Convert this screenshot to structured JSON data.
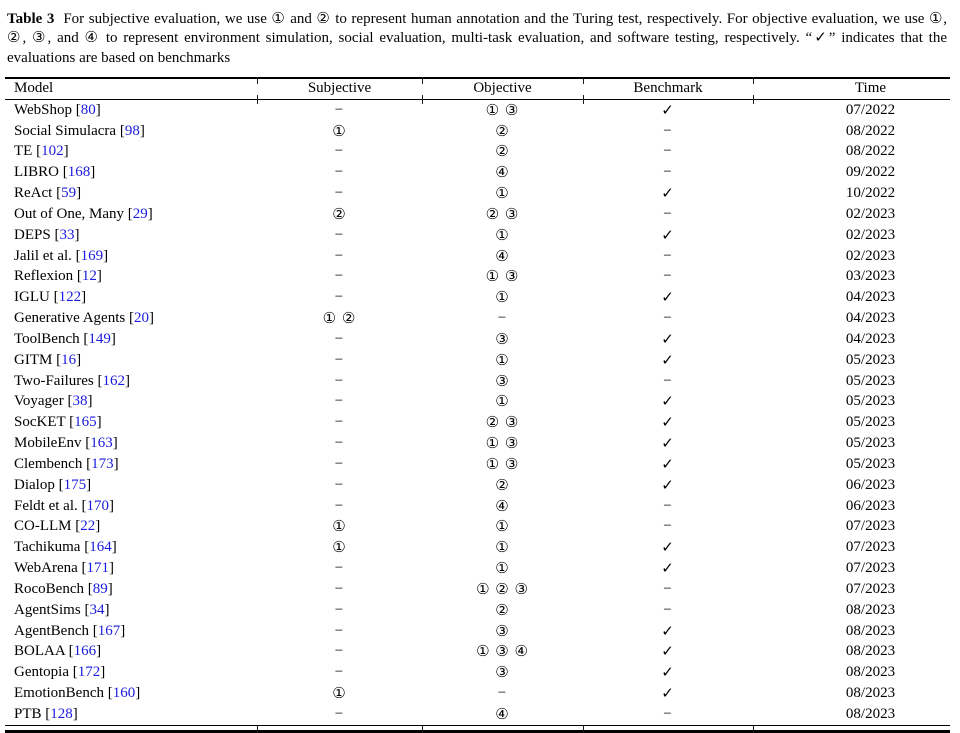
{
  "colors": {
    "link_blue": "#1a1ae0"
  },
  "caption": {
    "label": "Table 3",
    "text": "For subjective evaluation, we use ① and ② to represent human annotation and the Turing test, respectively. For objective evaluation, we use ①, ②, ③, and ④ to represent environment simulation, social evaluation, multi-task evaluation, and software testing, respectively. “✓” indicates that the evaluations are based on benchmarks"
  },
  "table": {
    "columns": [
      "Model",
      "Subjective",
      "Objective",
      "Benchmark",
      "Time"
    ],
    "ref_brackets": [
      "[",
      "]"
    ],
    "rows": [
      {
        "model": "WebShop",
        "ref": "80",
        "subjective": "−",
        "objective": "① ③",
        "benchmark": "✓",
        "time": "07/2022"
      },
      {
        "model": "Social Simulacra",
        "ref": "98",
        "subjective": "①",
        "objective": "②",
        "benchmark": "−",
        "time": "08/2022"
      },
      {
        "model": "TE",
        "ref": "102",
        "subjective": "−",
        "objective": "②",
        "benchmark": "−",
        "time": "08/2022"
      },
      {
        "model": "LIBRO",
        "ref": "168",
        "subjective": "−",
        "objective": "④",
        "benchmark": "−",
        "time": "09/2022"
      },
      {
        "model": "ReAct",
        "ref": "59",
        "subjective": "−",
        "objective": "①",
        "benchmark": "✓",
        "time": "10/2022"
      },
      {
        "model": "Out of One, Many",
        "ref": "29",
        "subjective": "②",
        "objective": "② ③",
        "benchmark": "−",
        "time": "02/2023"
      },
      {
        "model": "DEPS",
        "ref": "33",
        "subjective": "−",
        "objective": "①",
        "benchmark": "✓",
        "time": "02/2023"
      },
      {
        "model": "Jalil et al.",
        "ref": "169",
        "subjective": "−",
        "objective": "④",
        "benchmark": "−",
        "time": "02/2023"
      },
      {
        "model": "Reflexion",
        "ref": "12",
        "subjective": "−",
        "objective": "① ③",
        "benchmark": "−",
        "time": "03/2023"
      },
      {
        "model": "IGLU",
        "ref": "122",
        "subjective": "−",
        "objective": "①",
        "benchmark": "✓",
        "time": "04/2023"
      },
      {
        "model": "Generative Agents",
        "ref": "20",
        "subjective": "① ②",
        "objective": "−",
        "benchmark": "−",
        "time": "04/2023"
      },
      {
        "model": "ToolBench",
        "ref": "149",
        "subjective": "−",
        "objective": "③",
        "benchmark": "✓",
        "time": "04/2023"
      },
      {
        "model": "GITM",
        "ref": "16",
        "subjective": "−",
        "objective": "①",
        "benchmark": "✓",
        "time": "05/2023"
      },
      {
        "model": "Two-Failures",
        "ref": "162",
        "subjective": "−",
        "objective": "③",
        "benchmark": "−",
        "time": "05/2023"
      },
      {
        "model": "Voyager",
        "ref": "38",
        "subjective": "−",
        "objective": "①",
        "benchmark": "✓",
        "time": "05/2023"
      },
      {
        "model": "SocKET",
        "ref": "165",
        "subjective": "−",
        "objective": "② ③",
        "benchmark": "✓",
        "time": "05/2023"
      },
      {
        "model": "MobileEnv",
        "ref": "163",
        "subjective": "−",
        "objective": "① ③",
        "benchmark": "✓",
        "time": "05/2023"
      },
      {
        "model": "Clembench",
        "ref": "173",
        "subjective": "−",
        "objective": "① ③",
        "benchmark": "✓",
        "time": "05/2023"
      },
      {
        "model": "Dialop",
        "ref": "175",
        "subjective": "−",
        "objective": "②",
        "benchmark": "✓",
        "time": "06/2023"
      },
      {
        "model": "Feldt et al.",
        "ref": "170",
        "subjective": "−",
        "objective": "④",
        "benchmark": "−",
        "time": "06/2023"
      },
      {
        "model": "CO-LLM",
        "ref": "22",
        "subjective": "①",
        "objective": "①",
        "benchmark": "−",
        "time": "07/2023"
      },
      {
        "model": "Tachikuma",
        "ref": "164",
        "subjective": "①",
        "objective": "①",
        "benchmark": "✓",
        "time": "07/2023"
      },
      {
        "model": "WebArena",
        "ref": "171",
        "subjective": "−",
        "objective": "①",
        "benchmark": "✓",
        "time": "07/2023"
      },
      {
        "model": "RocoBench",
        "ref": "89",
        "subjective": "−",
        "objective": "① ② ③",
        "benchmark": "−",
        "time": "07/2023"
      },
      {
        "model": "AgentSims",
        "ref": "34",
        "subjective": "−",
        "objective": "②",
        "benchmark": "−",
        "time": "08/2023"
      },
      {
        "model": "AgentBench",
        "ref": "167",
        "subjective": "−",
        "objective": "③",
        "benchmark": "✓",
        "time": "08/2023"
      },
      {
        "model": "BOLAA",
        "ref": "166",
        "subjective": "−",
        "objective": "① ③ ④",
        "benchmark": "✓",
        "time": "08/2023"
      },
      {
        "model": "Gentopia",
        "ref": "172",
        "subjective": "−",
        "objective": "③",
        "benchmark": "✓",
        "time": "08/2023"
      },
      {
        "model": "EmotionBench",
        "ref": "160",
        "subjective": "①",
        "objective": "−",
        "benchmark": "✓",
        "time": "08/2023"
      },
      {
        "model": "PTB",
        "ref": "128",
        "subjective": "−",
        "objective": "④",
        "benchmark": "−",
        "time": "08/2023"
      }
    ]
  }
}
